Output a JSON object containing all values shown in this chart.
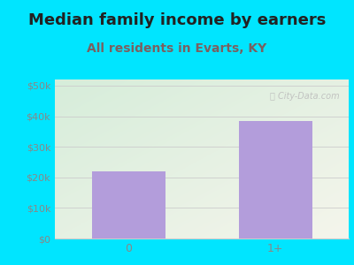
{
  "title": "Median family income by earners",
  "subtitle": "All residents in Evarts, KY",
  "categories": [
    "0",
    "1+"
  ],
  "values": [
    22000,
    38500
  ],
  "bar_color": "#b39ddb",
  "background_color": "#00e5ff",
  "plot_bg_topleft": "#d6edda",
  "plot_bg_bottomright": "#f0f0e8",
  "yticks": [
    0,
    10000,
    20000,
    30000,
    40000,
    50000
  ],
  "ytick_labels": [
    "$0",
    "$10k",
    "$20k",
    "$30k",
    "$40k",
    "$50k"
  ],
  "ylim": [
    0,
    52000
  ],
  "title_fontsize": 13,
  "subtitle_fontsize": 10,
  "title_color": "#222222",
  "subtitle_color": "#7a6060",
  "tick_color": "#888888",
  "grid_color": "#cccccc",
  "watermark_color": "#bbbbbb"
}
